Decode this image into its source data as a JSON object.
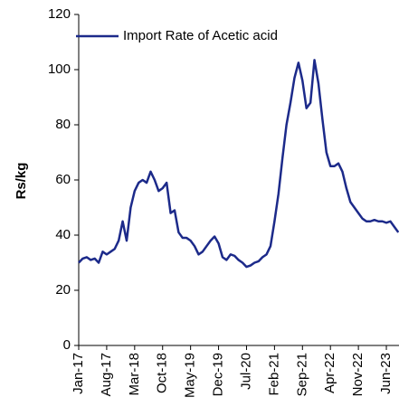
{
  "chart_data": {
    "type": "line",
    "y_label": "Rs/kg",
    "categories": [
      "Jan-17",
      null,
      null,
      null,
      null,
      null,
      null,
      "Aug-17",
      null,
      null,
      null,
      null,
      null,
      null,
      "Mar-18",
      null,
      null,
      null,
      null,
      null,
      null,
      "Oct-18",
      null,
      null,
      null,
      null,
      null,
      null,
      "May-19",
      null,
      null,
      null,
      null,
      null,
      null,
      "Dec-19",
      null,
      null,
      null,
      null,
      null,
      null,
      "Jul-20",
      null,
      null,
      null,
      null,
      null,
      null,
      "Feb-21",
      null,
      null,
      null,
      null,
      null,
      null,
      "Sep-21",
      null,
      null,
      null,
      null,
      null,
      null,
      "Apr-22",
      null,
      null,
      null,
      null,
      null,
      null,
      "Nov-22",
      null,
      null,
      null,
      null,
      null,
      null,
      "Jun-23",
      null,
      null,
      null
    ],
    "series": [
      {
        "name": "Import Rate of Acetic acid",
        "color": "#1c2a8a",
        "values": [
          30,
          31.5,
          32,
          31,
          31.5,
          30,
          34,
          33,
          34,
          35,
          38,
          45,
          38,
          50,
          56,
          59,
          60,
          59,
          63,
          60,
          56,
          57,
          59,
          48,
          49,
          41,
          39,
          39,
          38,
          36,
          33,
          34,
          36,
          38,
          39.5,
          37,
          32,
          31,
          33,
          32.5,
          31,
          30,
          28.5,
          29,
          30,
          30.5,
          32,
          33,
          36,
          45,
          55,
          68,
          80,
          88,
          97,
          102.5,
          96,
          86,
          88,
          103.5,
          95,
          82,
          70,
          65,
          65,
          66,
          63,
          57,
          52,
          50,
          48,
          46,
          45,
          45,
          45.5,
          45,
          45,
          44.5,
          45,
          43,
          41
        ]
      }
    ],
    "ylim": [
      0,
      120
    ],
    "yticks": [
      0,
      20,
      40,
      60,
      80,
      100,
      120
    ],
    "grid": false,
    "legend": "top-left"
  }
}
